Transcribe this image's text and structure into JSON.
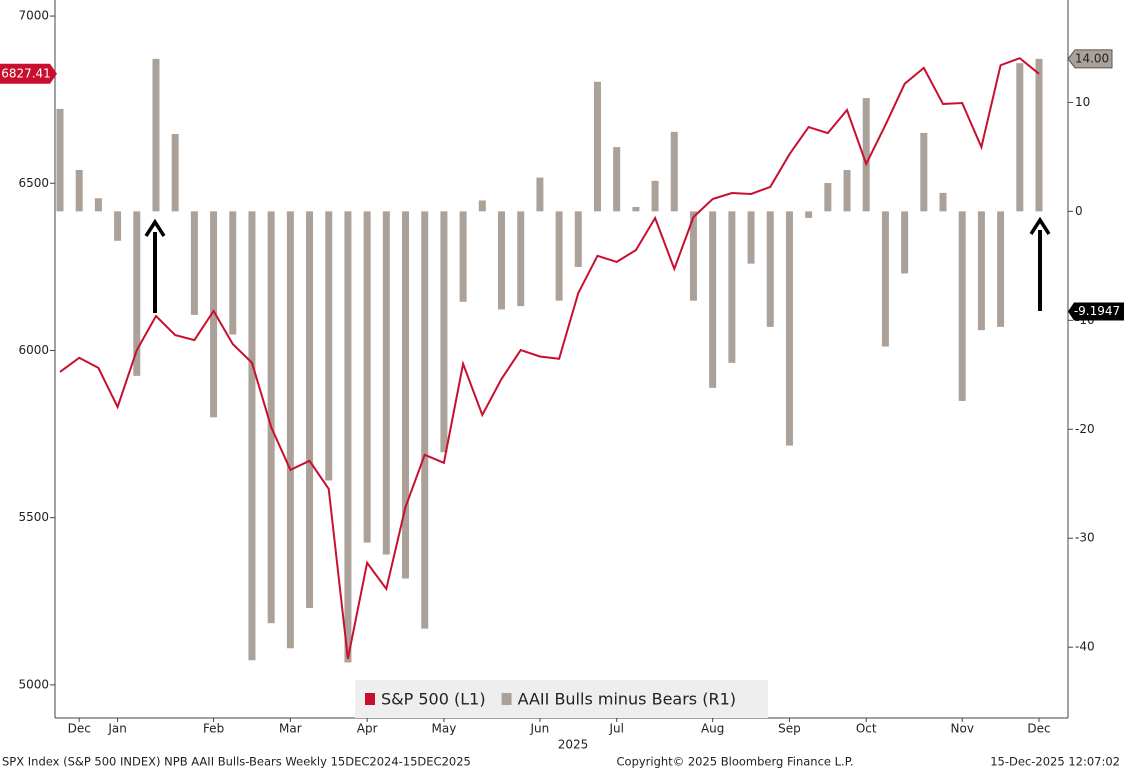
{
  "chart_data": {
    "type": "combo",
    "categories": [
      null,
      "Dec",
      null,
      "Jan",
      null,
      null,
      null,
      null,
      "Feb",
      null,
      null,
      null,
      "Mar",
      null,
      null,
      null,
      "Apr",
      null,
      null,
      null,
      "May",
      null,
      null,
      null,
      null,
      "Jun",
      null,
      null,
      null,
      "Jul",
      null,
      null,
      null,
      null,
      "Aug",
      null,
      null,
      null,
      "Sep",
      null,
      null,
      null,
      "Oct",
      null,
      null,
      null,
      null,
      "Nov",
      null,
      null,
      null,
      "Dec"
    ],
    "year_label": "2025",
    "series": [
      {
        "name": "S&P 500 (L1)",
        "type": "line",
        "axis": "y",
        "color": "#c8102e",
        "values": [
          5936,
          5978,
          5948,
          5831,
          6001,
          6103,
          6046,
          6031,
          6118,
          6019,
          5963,
          5771,
          5643,
          5670,
          5586,
          5078,
          5365,
          5287,
          5532,
          5688,
          5664,
          5960,
          5807,
          5915,
          6001,
          5982,
          5975,
          6172,
          6283,
          6265,
          6300,
          6396,
          6244,
          6399,
          6453,
          6471,
          6468,
          6489,
          6587,
          6668,
          6650,
          6719,
          6558,
          6674,
          6797,
          6845,
          6737,
          6740,
          6608,
          6853,
          6874,
          6827.41
        ]
      },
      {
        "name": "AAII Bulls minus Bears (R1)",
        "type": "bar",
        "axis": "y2",
        "color": "#aca199",
        "values": [
          9.4,
          3.8,
          1.2,
          -2.7,
          -15.1,
          14.0,
          7.1,
          -9.5,
          -18.9,
          -11.3,
          -41.2,
          -37.8,
          -40.1,
          -36.4,
          -24.7,
          -41.4,
          -30.4,
          -31.5,
          -33.7,
          -38.3,
          -22.1,
          -8.3,
          1.0,
          -9.0,
          -8.7,
          3.1,
          -8.2,
          -5.1,
          11.9,
          5.9,
          0.4,
          2.8,
          7.3,
          -8.2,
          -16.2,
          -13.9,
          -4.8,
          -10.6,
          -21.5,
          -0.6,
          2.6,
          3.8,
          10.4,
          -12.4,
          -5.7,
          7.2,
          1.7,
          -17.4,
          -10.9,
          -10.6,
          13.6,
          14.0
        ],
        "value_labels": [
          null,
          null,
          null,
          null,
          null,
          null,
          null,
          null,
          null,
          null,
          null,
          null,
          null,
          null,
          null,
          null,
          null,
          null,
          null,
          null,
          null,
          null,
          null,
          null,
          null,
          null,
          null,
          null,
          null,
          null,
          null,
          null,
          null,
          null,
          null,
          null,
          null,
          null,
          null,
          null,
          null,
          null,
          null,
          null,
          null,
          null,
          null,
          null,
          null,
          null,
          null,
          "14.00"
        ]
      }
    ],
    "ylim": [
      4901,
      7048
    ],
    "yticks": [
      5000,
      5500,
      6000,
      6500,
      7000
    ],
    "y2lim": [
      -46.5,
      19.4
    ],
    "y2ticks": [
      -40,
      -30,
      -20,
      -10,
      0,
      10
    ],
    "annotations": [
      {
        "text": "-9.1947",
        "y2": -9.1947
      }
    ],
    "footer": {
      "left": "SPX Index (S&P 500 INDEX) NPB AAII Bulls-Bears Weekly 15DEC2024-15DEC2025",
      "center": "Copyright© 2025 Bloomberg Finance L.P.",
      "right": "15-Dec-2025 12:07:02"
    }
  }
}
